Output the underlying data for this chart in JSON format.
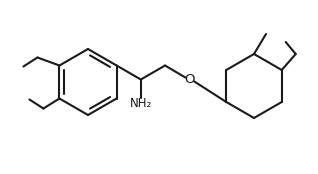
{
  "background_color": "#ffffff",
  "line_color": "#1a1a1a",
  "line_width": 1.5,
  "figsize": [
    3.18,
    1.74
  ],
  "dpi": 100,
  "font_size": 8.5
}
